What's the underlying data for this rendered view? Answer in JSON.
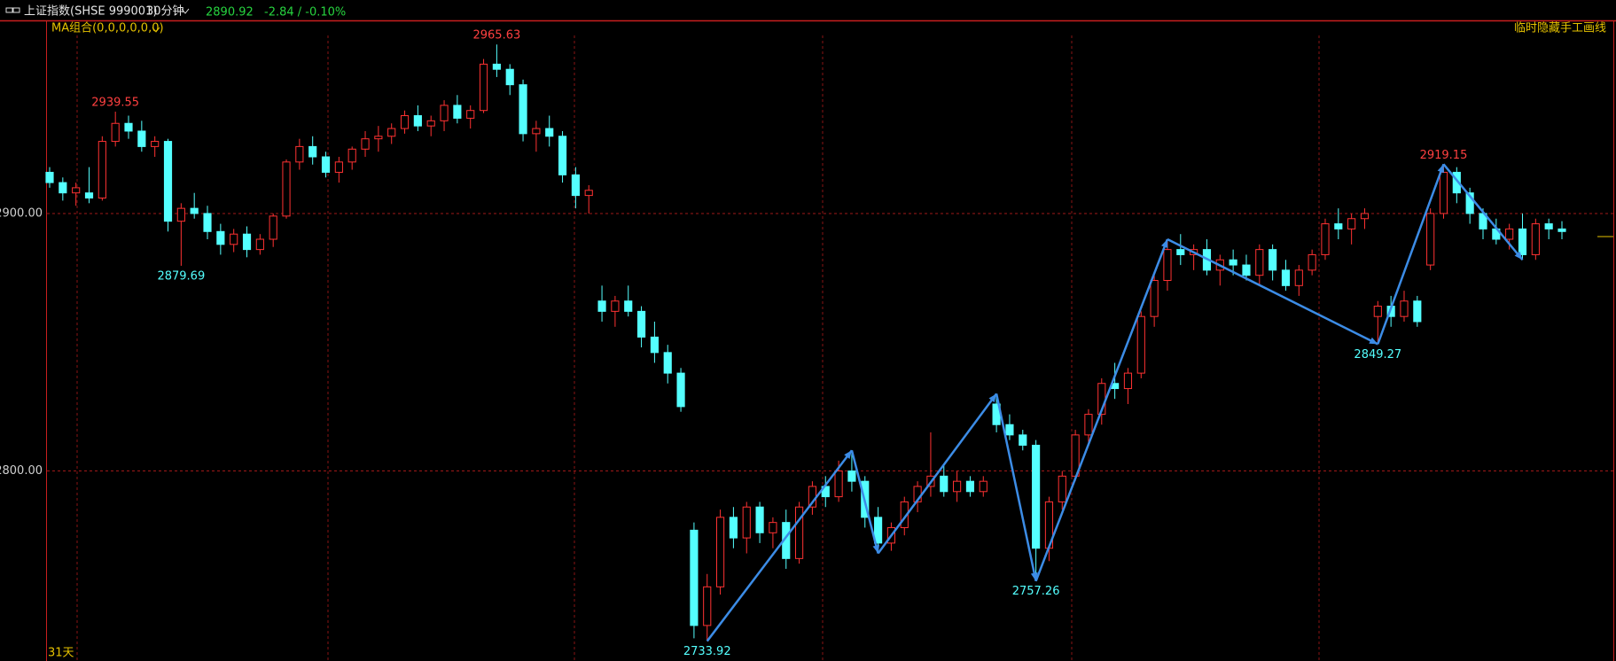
{
  "header": {
    "symbol": "上证指数(SHSE 999001)",
    "period": "30分钟",
    "price": "2890.92",
    "change": "-2.84 / -0.10%"
  },
  "chart_data": {
    "type": "candlestick",
    "indicator": "MA组合(0,0,0,0,0,0)",
    "toggle": "临时隐藏手工画线",
    "range": "31天",
    "ylim": [
      2726.2,
      2975
    ],
    "yticks": [
      {
        "value": 2800,
        "label": "2800.00"
      },
      {
        "value": 2900,
        "label": "2900.00"
      }
    ],
    "grid": true,
    "up_color": "#ff3232",
    "down_color": "#54ffff",
    "candles": [
      [
        2916,
        2918,
        2910,
        2912
      ],
      [
        2912,
        2914,
        2905,
        2908
      ],
      [
        2908,
        2912,
        2903,
        2910
      ],
      [
        2908,
        2918,
        2904,
        2906
      ],
      [
        2906,
        2930,
        2905,
        2928
      ],
      [
        2928,
        2939.55,
        2926,
        2935
      ],
      [
        2935,
        2938,
        2929,
        2932
      ],
      [
        2932,
        2936,
        2924,
        2926
      ],
      [
        2926,
        2930,
        2922,
        2928
      ],
      [
        2928,
        2929,
        2893,
        2897
      ],
      [
        2897,
        2904,
        2879.69,
        2902
      ],
      [
        2902,
        2908,
        2898,
        2900
      ],
      [
        2900,
        2903,
        2890,
        2893
      ],
      [
        2893,
        2896,
        2884,
        2888
      ],
      [
        2888,
        2894,
        2885,
        2892
      ],
      [
        2892,
        2895,
        2883,
        2886
      ],
      [
        2886,
        2892,
        2884,
        2890
      ],
      [
        2890,
        2900,
        2887,
        2899
      ],
      [
        2899,
        2921,
        2898,
        2920
      ],
      [
        2920,
        2929,
        2917,
        2926
      ],
      [
        2926,
        2930,
        2919,
        2922
      ],
      [
        2922,
        2924,
        2914,
        2916
      ],
      [
        2916,
        2922,
        2912,
        2920
      ],
      [
        2920,
        2926,
        2917,
        2925
      ],
      [
        2925,
        2932,
        2922,
        2929
      ],
      [
        2929,
        2934,
        2924,
        2930
      ],
      [
        2930,
        2935,
        2927,
        2933
      ],
      [
        2933,
        2940,
        2931,
        2938
      ],
      [
        2938,
        2942,
        2932,
        2934
      ],
      [
        2934,
        2938,
        2930,
        2936
      ],
      [
        2936,
        2944,
        2932,
        2942
      ],
      [
        2942,
        2946,
        2935,
        2937
      ],
      [
        2937,
        2942,
        2933,
        2940
      ],
      [
        2940,
        2960,
        2939,
        2958
      ],
      [
        2958,
        2965.63,
        2953,
        2956
      ],
      [
        2956,
        2958,
        2946,
        2950
      ],
      [
        2950,
        2952,
        2928,
        2931
      ],
      [
        2931,
        2936,
        2924,
        2933
      ],
      [
        2933,
        2938,
        2926,
        2930
      ],
      [
        2930,
        2932,
        2912,
        2915
      ],
      [
        2915,
        2918,
        2902,
        2907
      ],
      [
        2907,
        2911,
        2900,
        2909
      ],
      [
        2866,
        2872,
        2858,
        2862
      ],
      [
        2862,
        2868,
        2856,
        2866
      ],
      [
        2866,
        2872,
        2860,
        2862
      ],
      [
        2862,
        2864,
        2848,
        2852
      ],
      [
        2852,
        2858,
        2842,
        2846
      ],
      [
        2846,
        2849,
        2834,
        2838
      ],
      [
        2838,
        2840,
        2823,
        2825
      ],
      [
        2777,
        2780,
        2735,
        2740
      ],
      [
        2740,
        2760,
        2733.92,
        2755
      ],
      [
        2755,
        2785,
        2752,
        2782
      ],
      [
        2782,
        2786,
        2770,
        2774
      ],
      [
        2774,
        2788,
        2768,
        2786
      ],
      [
        2786,
        2788,
        2772,
        2776
      ],
      [
        2776,
        2782,
        2770,
        2780
      ],
      [
        2780,
        2785,
        2762,
        2766
      ],
      [
        2766,
        2788,
        2764,
        2786
      ],
      [
        2786,
        2796,
        2783,
        2794
      ],
      [
        2794,
        2798,
        2786,
        2790
      ],
      [
        2790,
        2804,
        2788,
        2800
      ],
      [
        2800,
        2808,
        2792,
        2796
      ],
      [
        2796,
        2798,
        2778,
        2782
      ],
      [
        2782,
        2786,
        2768,
        2772
      ],
      [
        2772,
        2780,
        2769,
        2778
      ],
      [
        2778,
        2790,
        2775,
        2788
      ],
      [
        2788,
        2796,
        2784,
        2794
      ],
      [
        2794,
        2815,
        2790,
        2798
      ],
      [
        2798,
        2802,
        2790,
        2792
      ],
      [
        2792,
        2800,
        2788,
        2796
      ],
      [
        2796,
        2798,
        2790,
        2792
      ],
      [
        2792,
        2798,
        2790,
        2796
      ],
      [
        2826,
        2830,
        2815,
        2818
      ],
      [
        2818,
        2822,
        2812,
        2814
      ],
      [
        2814,
        2816,
        2808,
        2810
      ],
      [
        2810,
        2812,
        2757.26,
        2770
      ],
      [
        2770,
        2790,
        2765,
        2788
      ],
      [
        2788,
        2800,
        2785,
        2798
      ],
      [
        2798,
        2816,
        2796,
        2814
      ],
      [
        2814,
        2824,
        2810,
        2822
      ],
      [
        2822,
        2836,
        2818,
        2834
      ],
      [
        2834,
        2842,
        2828,
        2832
      ],
      [
        2832,
        2840,
        2826,
        2838
      ],
      [
        2838,
        2862,
        2836,
        2860
      ],
      [
        2860,
        2876,
        2856,
        2874
      ],
      [
        2874,
        2890,
        2870,
        2886
      ],
      [
        2886,
        2892,
        2880,
        2884
      ],
      [
        2884,
        2888,
        2878,
        2886
      ],
      [
        2886,
        2890,
        2876,
        2878
      ],
      [
        2878,
        2884,
        2872,
        2882
      ],
      [
        2882,
        2886,
        2876,
        2880
      ],
      [
        2880,
        2884,
        2874,
        2876
      ],
      [
        2876,
        2888,
        2872,
        2886
      ],
      [
        2886,
        2888,
        2874,
        2878
      ],
      [
        2878,
        2882,
        2870,
        2872
      ],
      [
        2872,
        2880,
        2868,
        2878
      ],
      [
        2878,
        2886,
        2876,
        2884
      ],
      [
        2884,
        2898,
        2882,
        2896
      ],
      [
        2896,
        2902,
        2890,
        2894
      ],
      [
        2894,
        2900,
        2888,
        2898
      ],
      [
        2898,
        2902,
        2894,
        2900
      ],
      [
        2860,
        2866,
        2849.27,
        2864
      ],
      [
        2864,
        2868,
        2856,
        2860
      ],
      [
        2860,
        2870,
        2858,
        2866
      ],
      [
        2866,
        2868,
        2856,
        2858
      ],
      [
        2880,
        2902,
        2878,
        2900
      ],
      [
        2900,
        2919.15,
        2898,
        2916
      ],
      [
        2916,
        2918,
        2904,
        2908
      ],
      [
        2908,
        2910,
        2896,
        2900
      ],
      [
        2900,
        2902,
        2890,
        2894
      ],
      [
        2894,
        2898,
        2888,
        2890
      ],
      [
        2890,
        2896,
        2886,
        2894
      ],
      [
        2894,
        2900,
        2882,
        2884
      ],
      [
        2884,
        2898,
        2882,
        2896
      ],
      [
        2896,
        2898,
        2890,
        2894
      ],
      [
        2894,
        2897,
        2890,
        2893
      ]
    ],
    "peaks": [
      2939.55,
      2965.63,
      2919.15
    ],
    "troughs": [
      2879.69,
      2733.92,
      2757.26,
      2849.27
    ]
  }
}
